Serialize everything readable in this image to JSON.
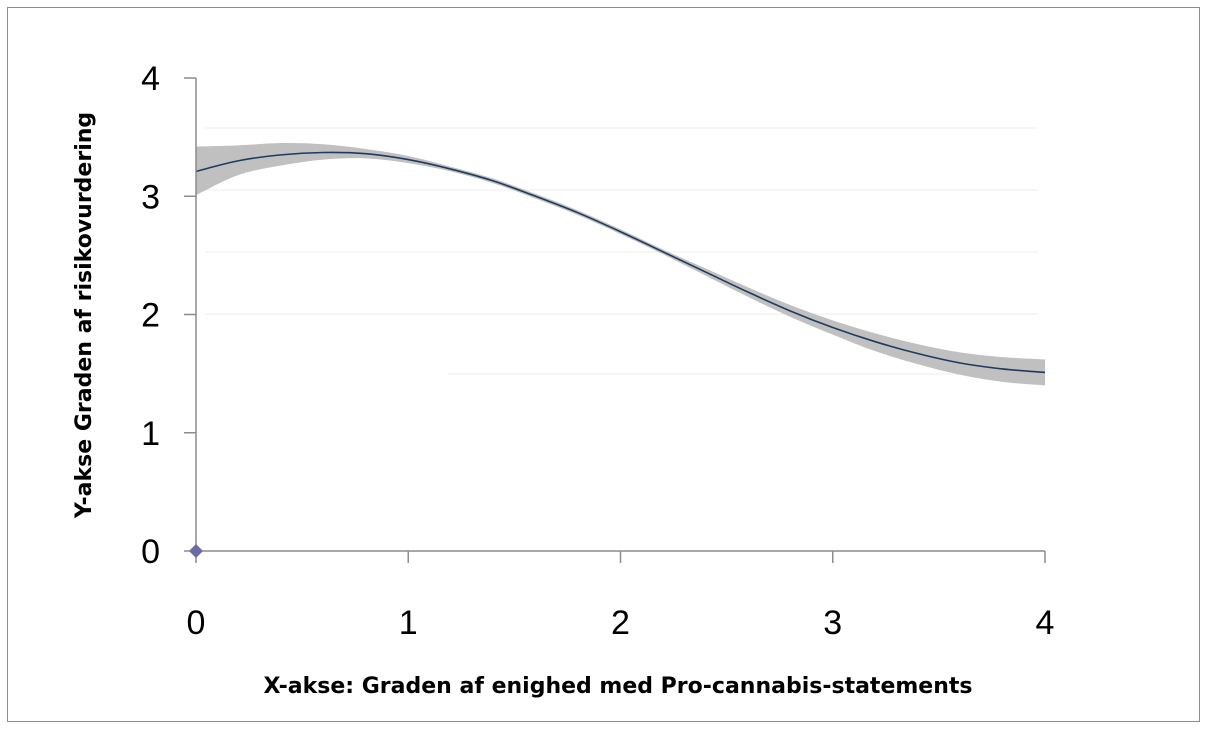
{
  "chart_data": {
    "type": "line",
    "title": "",
    "xlabel": "X-akse: Graden af enighed med Pro-cannabis-statements",
    "ylabel": "Y-akse Graden af risikovurdering",
    "xlim": [
      0,
      4
    ],
    "ylim": [
      0,
      4
    ],
    "x_ticks": [
      "0",
      "1",
      "2",
      "3",
      "4"
    ],
    "y_ticks": [
      "0",
      "1",
      "2",
      "3",
      "4"
    ],
    "grid": "faint horizontal",
    "legend": "none",
    "series": [
      {
        "type": "line",
        "x": [
          0.0,
          0.2,
          0.4,
          0.6,
          0.8,
          1.0,
          1.2,
          1.4,
          1.6,
          1.8,
          2.0,
          2.2,
          2.4,
          2.6,
          2.8,
          3.0,
          3.2,
          3.4,
          3.6,
          3.8,
          4.0
        ],
        "y": [
          3.21,
          3.3,
          3.35,
          3.37,
          3.36,
          3.31,
          3.23,
          3.13,
          3.0,
          2.86,
          2.7,
          2.53,
          2.36,
          2.19,
          2.03,
          1.89,
          1.77,
          1.67,
          1.59,
          1.54,
          1.51
        ],
        "ci_lower": [
          3.01,
          3.18,
          3.26,
          3.31,
          3.32,
          3.28,
          3.21,
          3.11,
          2.98,
          2.84,
          2.68,
          2.51,
          2.33,
          2.15,
          1.98,
          1.83,
          1.69,
          1.58,
          1.49,
          1.43,
          1.4
        ],
        "ci_upper": [
          3.42,
          3.43,
          3.45,
          3.44,
          3.4,
          3.34,
          3.25,
          3.15,
          3.02,
          2.88,
          2.72,
          2.55,
          2.39,
          2.23,
          2.08,
          1.95,
          1.84,
          1.75,
          1.68,
          1.64,
          1.62
        ]
      },
      {
        "type": "scatter",
        "x": [
          0
        ],
        "y": [
          0
        ]
      }
    ],
    "colors": {
      "line": "#1f3a5f",
      "band": "#c0c0c0",
      "marker": "#6b6ba8",
      "axis": "#8c8c8c",
      "grid": "#ececec"
    }
  }
}
